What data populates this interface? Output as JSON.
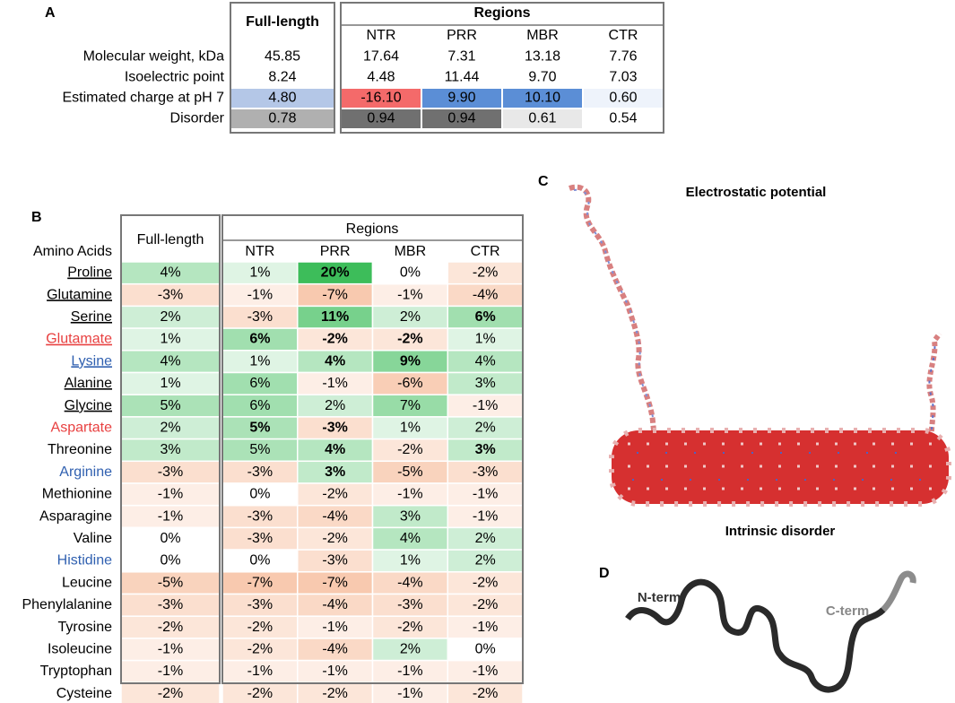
{
  "panels": {
    "a": "A",
    "b": "B",
    "c": "C",
    "d": "D"
  },
  "table_a": {
    "full_length": "Full-length",
    "regions": "Regions",
    "region_names": [
      "NTR",
      "PRR",
      "MBR",
      "CTR"
    ],
    "rows": [
      {
        "label": "Molecular weight, kDa",
        "cells": [
          "45.85",
          "17.64",
          "7.31",
          "13.18",
          "7.76"
        ],
        "colors": [
          null,
          null,
          null,
          null,
          null
        ]
      },
      {
        "label": "Isoelectric point",
        "cells": [
          "8.24",
          "4.48",
          "11.44",
          "9.70",
          "7.03"
        ],
        "colors": [
          null,
          null,
          null,
          null,
          null
        ]
      },
      {
        "label": "Estimated charge at pH 7",
        "cells": [
          "4.80",
          "-16.10",
          "9.90",
          "10.10",
          "0.60"
        ],
        "colors": [
          "#b4c7e7",
          "#f46a6a",
          "#5b8ed6",
          "#5b8ed6",
          "#eef3fb"
        ]
      },
      {
        "label": "Disorder",
        "cells": [
          "0.78",
          "0.94",
          "0.94",
          "0.61",
          "0.54"
        ],
        "colors": [
          "#b0b0b0",
          "#707070",
          "#707070",
          "#e8e8e8",
          null
        ]
      }
    ]
  },
  "table_b": {
    "row_header": "Amino Acids",
    "full_length": "Full-length",
    "regions": "Regions",
    "region_names": [
      "NTR",
      "PRR",
      "MBR",
      "CTR"
    ],
    "rows": [
      {
        "label": "Proline",
        "underline": true,
        "label_color": "#000000",
        "cells": [
          "4%",
          "1%",
          "20%",
          "0%",
          "-2%"
        ],
        "bold": [
          2
        ]
      },
      {
        "label": "Glutamine",
        "underline": true,
        "label_color": "#000000",
        "cells": [
          "-3%",
          "-1%",
          "-7%",
          "-1%",
          "-4%"
        ],
        "bold": []
      },
      {
        "label": "Serine",
        "underline": true,
        "label_color": "#000000",
        "cells": [
          "2%",
          "-3%",
          "11%",
          "2%",
          "6%"
        ],
        "bold": [
          2,
          4
        ]
      },
      {
        "label": "Glutamate",
        "underline": true,
        "label_color": "#e84040",
        "cells": [
          "1%",
          "6%",
          "-2%",
          "-2%",
          "1%"
        ],
        "bold": [
          1,
          2,
          3
        ]
      },
      {
        "label": "Lysine",
        "underline": true,
        "label_color": "#3060b0",
        "cells": [
          "4%",
          "1%",
          "4%",
          "9%",
          "4%"
        ],
        "bold": [
          2,
          3
        ]
      },
      {
        "label": "Alanine",
        "underline": true,
        "label_color": "#000000",
        "cells": [
          "1%",
          "6%",
          "-1%",
          "-6%",
          "3%"
        ],
        "bold": []
      },
      {
        "label": "Glycine",
        "underline": true,
        "label_color": "#000000",
        "cells": [
          "5%",
          "6%",
          "2%",
          "7%",
          "-1%"
        ],
        "bold": []
      },
      {
        "label": "Aspartate",
        "underline": false,
        "label_color": "#e84040",
        "cells": [
          "2%",
          "5%",
          "-3%",
          "1%",
          "2%"
        ],
        "bold": [
          1,
          2
        ]
      },
      {
        "label": "Threonine",
        "underline": false,
        "label_color": "#000000",
        "cells": [
          "3%",
          "5%",
          "4%",
          "-2%",
          "3%"
        ],
        "bold": [
          2,
          4
        ]
      },
      {
        "label": "Arginine",
        "underline": false,
        "label_color": "#3060b0",
        "cells": [
          "-3%",
          "-3%",
          "3%",
          "-5%",
          "-3%"
        ],
        "bold": [
          2
        ]
      },
      {
        "label": "Methionine",
        "underline": false,
        "label_color": "#000000",
        "cells": [
          "-1%",
          "0%",
          "-2%",
          "-1%",
          "-1%"
        ],
        "bold": []
      },
      {
        "label": "Asparagine",
        "underline": false,
        "label_color": "#000000",
        "cells": [
          "-1%",
          "-3%",
          "-4%",
          "3%",
          "-1%"
        ],
        "bold": []
      },
      {
        "label": "Valine",
        "underline": false,
        "label_color": "#000000",
        "cells": [
          "0%",
          "-3%",
          "-2%",
          "4%",
          "2%"
        ],
        "bold": []
      },
      {
        "label": "Histidine",
        "underline": false,
        "label_color": "#3060b0",
        "cells": [
          "0%",
          "0%",
          "-3%",
          "1%",
          "2%"
        ],
        "bold": []
      },
      {
        "label": "Leucine",
        "underline": false,
        "label_color": "#000000",
        "cells": [
          "-5%",
          "-7%",
          "-7%",
          "-4%",
          "-2%"
        ],
        "bold": []
      },
      {
        "label": "Phenylalanine",
        "underline": false,
        "label_color": "#000000",
        "cells": [
          "-3%",
          "-3%",
          "-4%",
          "-3%",
          "-2%"
        ],
        "bold": []
      },
      {
        "label": "Tyrosine",
        "underline": false,
        "label_color": "#000000",
        "cells": [
          "-2%",
          "-2%",
          "-1%",
          "-2%",
          "-1%"
        ],
        "bold": []
      },
      {
        "label": "Isoleucine",
        "underline": false,
        "label_color": "#000000",
        "cells": [
          "-1%",
          "-2%",
          "-4%",
          "2%",
          "0%"
        ],
        "bold": []
      },
      {
        "label": "Tryptophan",
        "underline": false,
        "label_color": "#000000",
        "cells": [
          "-1%",
          "-1%",
          "-1%",
          "-1%",
          "-1%"
        ],
        "bold": []
      },
      {
        "label": "Cysteine",
        "underline": false,
        "label_color": "#000000",
        "cells": [
          "-2%",
          "-2%",
          "-2%",
          "-1%",
          "-2%"
        ],
        "bold": []
      }
    ]
  },
  "images": {
    "c_title": "Electrostatic potential",
    "d_title": "Intrinsic disorder",
    "n_term": "N-term",
    "c_term": "C-term"
  }
}
